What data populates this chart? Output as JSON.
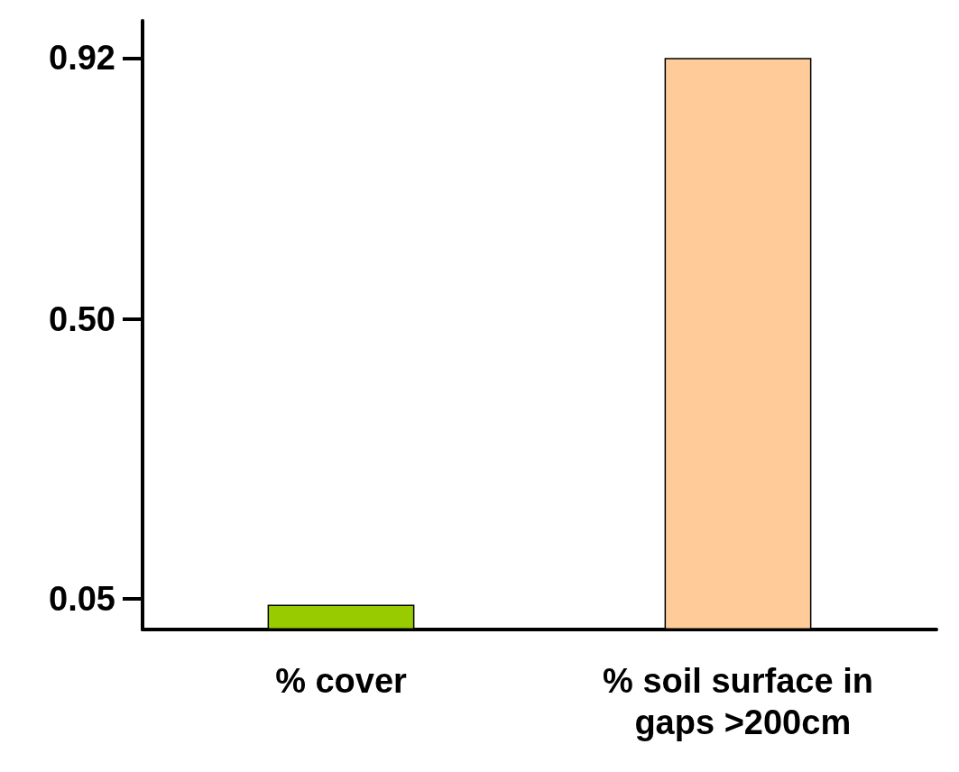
{
  "chart_data": {
    "type": "bar",
    "categories": [
      "% cover",
      "% soil surface in gaps >200cm"
    ],
    "values": [
      0.04,
      0.92
    ],
    "colors": [
      "#99cc00",
      "#ffcc99"
    ],
    "ylim": [
      0,
      0.98
    ],
    "yticks": [
      0.05,
      {
        "value": 0.5,
        "label": "0.50"
      },
      0.92
    ],
    "grid": false
  }
}
